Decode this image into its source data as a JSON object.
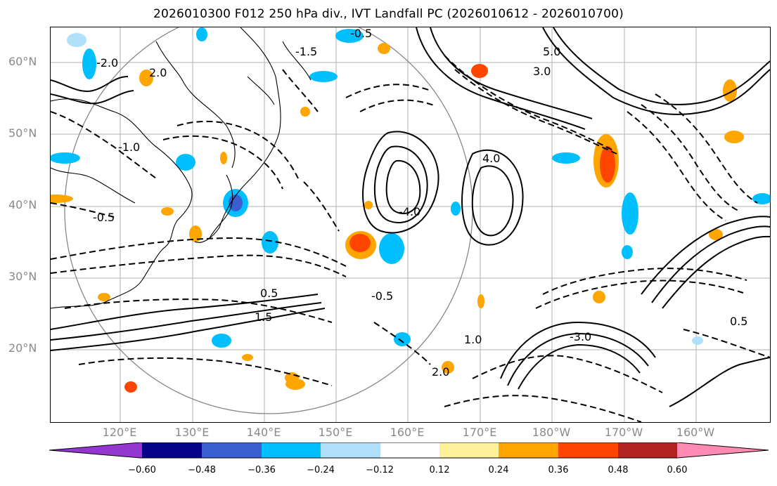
{
  "title": "2026010300 F012 250 hPa div., IVT Landfall PC (2026010612 - 2026010700)",
  "lat_labels": [
    "60°N",
    "50°N",
    "40°N",
    "30°N",
    "20°N"
  ],
  "lon_labels": [
    "120°E",
    "130°E",
    "140°E",
    "150°E",
    "160°E",
    "170°E",
    "180°W",
    "170°W",
    "160°W"
  ],
  "contour_labels": [
    "-0.5",
    "-1.5",
    "-2.0",
    "2.0",
    "-1.0",
    "-0.5",
    "0.5",
    "1.5",
    "-4.0",
    "4.0",
    "5.0",
    "-0.5",
    "3.0",
    "-3.0",
    "2.0",
    "1.0",
    "0.5"
  ],
  "colorbar": {
    "ticks": [
      "−0.60",
      "−0.48",
      "−0.36",
      "−0.24",
      "−0.12",
      "0.12",
      "0.24",
      "0.36",
      "0.48",
      "0.60"
    ],
    "colors": [
      "#9437d1",
      "#04048a",
      "#3a5fd0",
      "#00bfff",
      "#b0e0fa",
      "#ffffff",
      "#fff09a",
      "#ffa500",
      "#ff4500",
      "#b22222",
      "#ff8bb5",
      "#ff8bb5"
    ]
  },
  "colors": {
    "positive_shade": "#ffa500",
    "strong_positive_shade": "#ff4500",
    "negative_shade": "#00bfff",
    "gridline": "#b0b0b0",
    "axis_label": "#8a8a8a"
  }
}
